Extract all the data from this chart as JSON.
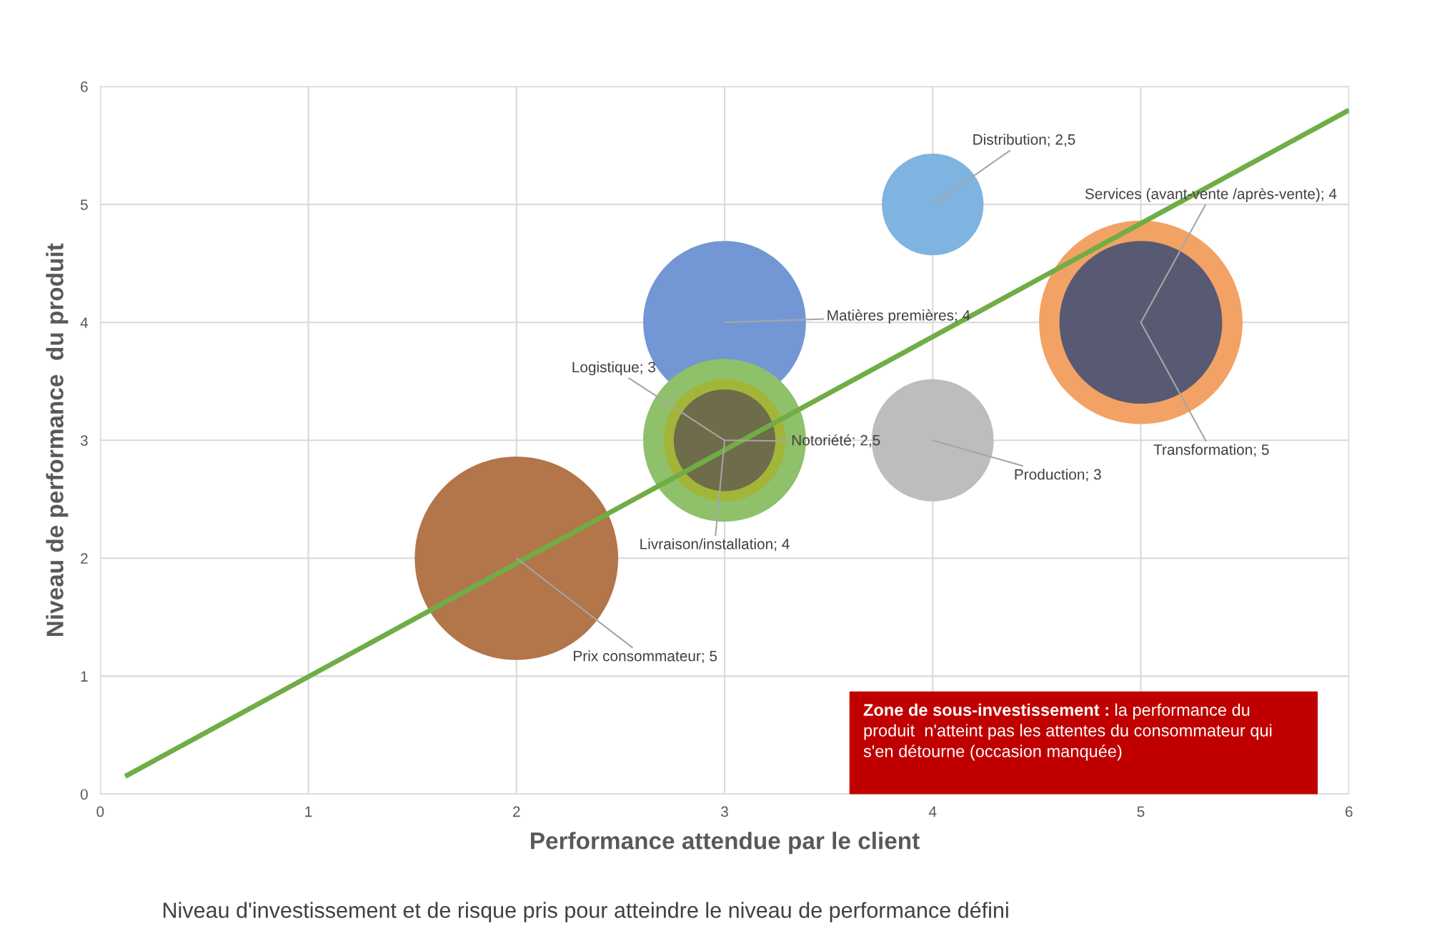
{
  "chart_data": {
    "type": "bubble",
    "xlabel": "Performance attendue par le client",
    "ylabel": "Niveau de performance  du produit",
    "xlim": [
      0,
      6
    ],
    "ylim": [
      0,
      6
    ],
    "xticks": [
      0,
      1,
      2,
      3,
      4,
      5,
      6
    ],
    "yticks": [
      0,
      1,
      2,
      3,
      4,
      5,
      6
    ],
    "grid": true,
    "series": [
      {
        "x": [
          2
        ],
        "values": [
          2
        ],
        "sizes": [
          1
        ],
        "color": "#b3754a"
      },
      {
        "x": [
          3
        ],
        "values": [
          4
        ],
        "sizes": [
          0.64
        ],
        "color": "#7297d4"
      },
      {
        "x": [
          3
        ],
        "values": [
          3
        ],
        "sizes": [
          0.64
        ],
        "color": "#8fc06a"
      },
      {
        "x": [
          3
        ],
        "values": [
          3
        ],
        "sizes": [
          0.36
        ],
        "color": "#a3b538"
      },
      {
        "x": [
          3
        ],
        "values": [
          3
        ],
        "sizes": [
          0.25
        ],
        "color": "#6e6c4a"
      },
      {
        "x": [
          4
        ],
        "values": [
          3
        ],
        "sizes": [
          0.36
        ],
        "color": "#bdbdbd"
      },
      {
        "x": [
          4
        ],
        "values": [
          5
        ],
        "sizes": [
          0.25
        ],
        "color": "#80b4e0"
      },
      {
        "x": [
          5
        ],
        "values": [
          4
        ],
        "sizes": [
          1
        ],
        "color": "#f2a264"
      },
      {
        "x": [
          5
        ],
        "values": [
          4
        ],
        "sizes": [
          0.64
        ],
        "color": "#575a72"
      },
      {
        "type": "line",
        "x": [
          0.12,
          6
        ],
        "values": [
          0.15,
          5.8
        ],
        "color": "#70ad47"
      }
    ],
    "annotations": [
      {
        "text": "Prix consommateur; 5",
        "x": 2,
        "y": 2
      },
      {
        "text": "Matières premières; 4",
        "x": 3,
        "y": 4
      },
      {
        "text": "Livraison/installation; 4",
        "x": 3,
        "y": 3
      },
      {
        "text": "Logistique; 3",
        "x": 3,
        "y": 3
      },
      {
        "text": "Notoriété; 2,5",
        "x": 3,
        "y": 3
      },
      {
        "text": "Production; 3",
        "x": 4,
        "y": 3
      },
      {
        "text": "Distribution; 2,5",
        "x": 4,
        "y": 5
      },
      {
        "text": "Transformation; 5",
        "x": 5,
        "y": 4
      },
      {
        "text": "Services (avant-vente /après-vente); 4",
        "x": 5,
        "y": 4
      },
      "Zone de sous-investissement :",
      "la performance du produit  n'atteint pas les attentes du consommateur qui s'en détourne (occasion manquée)",
      "Niveau d'investissement et de risque pris pour atteindre le niveau de performance défini"
    ]
  }
}
